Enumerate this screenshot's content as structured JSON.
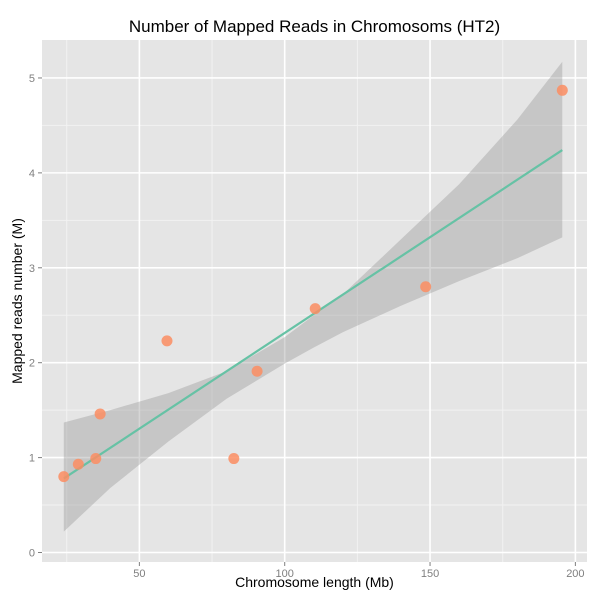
{
  "chart_data": {
    "type": "scatter",
    "title": "Number of Mapped Reads in Chromosoms (HT2)",
    "xlabel": "Chromosome length (Mb)",
    "ylabel": "Mapped reads number (M)",
    "xlim": [
      16.5,
      204
    ],
    "ylim": [
      -0.1,
      5.4
    ],
    "xticks": [
      50,
      100,
      150,
      200
    ],
    "xtick_labels": [
      "50",
      "100",
      "150",
      "200"
    ],
    "yticks": [
      0,
      1,
      2,
      3,
      4,
      5
    ],
    "ytick_labels": [
      "0",
      "1",
      "2",
      "3",
      "4",
      "5"
    ],
    "grid": true,
    "legend": "none",
    "series": [
      {
        "points": [
          {
            "x": 24,
            "y": 0.8
          },
          {
            "x": 29,
            "y": 0.93
          },
          {
            "x": 35,
            "y": 0.99
          },
          {
            "x": 36.5,
            "y": 1.46
          },
          {
            "x": 59.5,
            "y": 2.23
          },
          {
            "x": 82.5,
            "y": 0.99
          },
          {
            "x": 90.5,
            "y": 1.91
          },
          {
            "x": 110.5,
            "y": 2.57
          },
          {
            "x": 148.5,
            "y": 2.8
          },
          {
            "x": 195.5,
            "y": 4.87
          }
        ]
      }
    ],
    "trend_line": {
      "x": [
        24,
        195.5
      ],
      "y": [
        0.78,
        4.24
      ]
    },
    "confidence_band": {
      "x": [
        24,
        40,
        60,
        80,
        100,
        110,
        120,
        140,
        160,
        180,
        195.5
      ],
      "lower": [
        0.22,
        0.68,
        1.17,
        1.62,
        1.99,
        2.16,
        2.32,
        2.6,
        2.86,
        3.1,
        3.32
      ],
      "upper": [
        1.37,
        1.5,
        1.68,
        1.91,
        2.27,
        2.5,
        2.72,
        3.3,
        3.88,
        4.56,
        5.17
      ]
    },
    "colors": {
      "panel_bg": "#e5e5e5",
      "grid_major": "#ffffff",
      "grid_minor": "#f2f2f2",
      "points": "#fc8d62",
      "trend_line": "#66c2a5",
      "band": "#999999"
    }
  }
}
